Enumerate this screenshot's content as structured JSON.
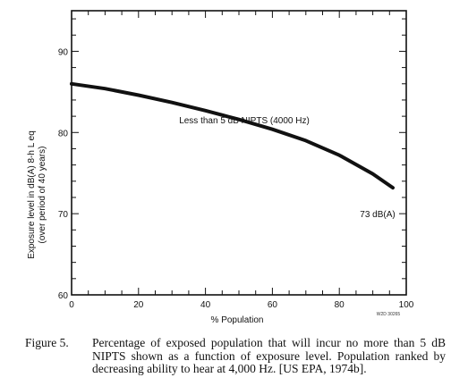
{
  "chart_data": {
    "type": "line",
    "title": "",
    "xlabel": "% Population",
    "ylabel": "Exposure level in dB(A) 8-h L eq",
    "ylabel2": "(over period of 40 years)",
    "xlim": [
      0,
      100
    ],
    "ylim": [
      60,
      95
    ],
    "x_ticks": [
      0,
      20,
      40,
      60,
      80,
      100
    ],
    "y_ticks": [
      60,
      70,
      80,
      90
    ],
    "grid": false,
    "series": [
      {
        "x": [
          0,
          10,
          20,
          30,
          40,
          50,
          60,
          70,
          80,
          90,
          96
        ],
        "y": [
          86,
          85.4,
          84.6,
          83.7,
          82.7,
          81.6,
          80.4,
          79.0,
          77.2,
          74.9,
          73.2
        ]
      }
    ],
    "annotations": {
      "curve_label": "Less than 5 dB NIPTS (4000 Hz)",
      "end_label": "73 dB(A)",
      "figure_code": "W2D 30265"
    }
  },
  "caption": {
    "label": "Figure 5.",
    "text": "Percentage of exposed population that will incur no more than 5 dB NIPTS shown as a function of exposure level. Population ranked by decreasing ability to hear at 4,000 Hz. [US EPA, 1974b]."
  }
}
